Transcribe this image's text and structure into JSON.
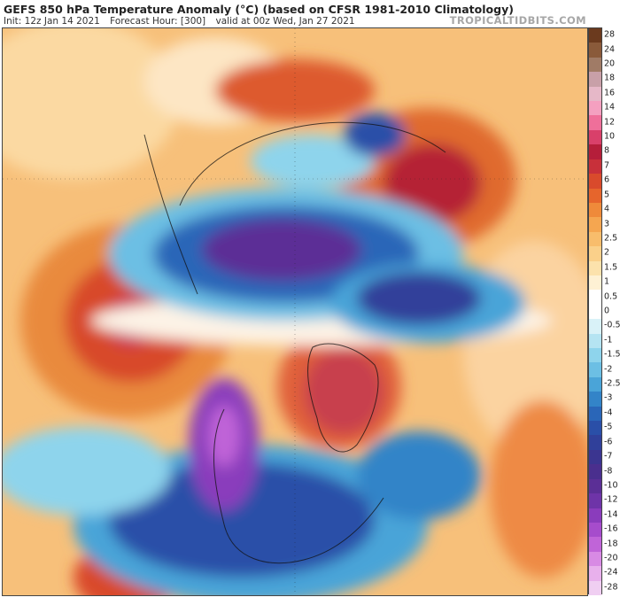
{
  "header": {
    "title": "GEFS 850 hPa Temperature Anomaly (°C) (based on CFSR 1981-2010 Climatology)",
    "init": "Init: 12z Jan 14 2021",
    "forecast_hour": "Forecast Hour: [300]",
    "valid": "valid at 00z Wed, Jan 27 2021",
    "brand": "TROPICALTIDBITS.COM"
  },
  "colorbar": {
    "labels": [
      "28",
      "24",
      "20",
      "18",
      "16",
      "14",
      "12",
      "10",
      "8",
      "7",
      "6",
      "5",
      "4",
      "3",
      "2.5",
      "2",
      "1.5",
      "1",
      "0.5",
      "0",
      "-0.5",
      "-1",
      "-1.5",
      "-2",
      "-2.5",
      "-3",
      "-4",
      "-5",
      "-6",
      "-7",
      "-8",
      "-10",
      "-12",
      "-14",
      "-16",
      "-18",
      "-20",
      "-24",
      "-28"
    ],
    "colors": [
      "#6b3a1e",
      "#8a5a3a",
      "#a07b66",
      "#c8a0a8",
      "#e6b8c8",
      "#f4a0c0",
      "#ef6f9a",
      "#d9406a",
      "#b51e3a",
      "#c8303a",
      "#d94a2c",
      "#e6652c",
      "#ef8a3a",
      "#f5a650",
      "#f8bd6c",
      "#fad08a",
      "#fce2ac",
      "#fef1d4",
      "#ffffff",
      "#ffffff",
      "#d9f2f8",
      "#b5e4f2",
      "#8ed4ec",
      "#6cbfe4",
      "#4aa4d8",
      "#3384c8",
      "#2a66b8",
      "#2a4fa8",
      "#30409a",
      "#3b3590",
      "#4a2f8e",
      "#5b2f96",
      "#6e34a8",
      "#8a3cbc",
      "#a64ccc",
      "#c064d8",
      "#d88ae4",
      "#e8b0ec",
      "#f0cff2"
    ]
  },
  "map": {
    "region": "Northern Hemisphere polar stereographic",
    "features": [
      {
        "name": "warm-anomaly-north-pacific",
        "sign": "positive"
      },
      {
        "name": "cold-anomaly-arctic",
        "sign": "negative"
      },
      {
        "name": "cold-anomaly-siberia",
        "sign": "negative"
      },
      {
        "name": "warm-anomaly-greenland",
        "sign": "positive"
      },
      {
        "name": "cold-anomaly-western-north-america",
        "sign": "negative"
      },
      {
        "name": "warm-anomaly-east-asia",
        "sign": "positive"
      },
      {
        "name": "warm-anomaly-atlantic",
        "sign": "positive"
      }
    ]
  }
}
